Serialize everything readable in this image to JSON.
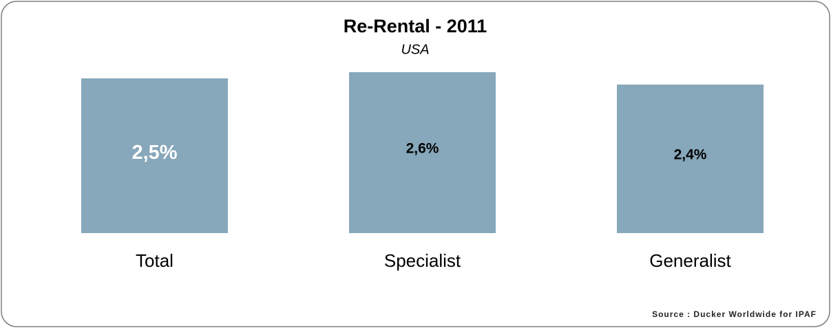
{
  "chart_data": {
    "type": "bar",
    "title": "Re-Rental - 2011",
    "subtitle": "USA",
    "categories": [
      "Total",
      "Specialist",
      "Generalist"
    ],
    "values": [
      2.5,
      2.6,
      2.4
    ],
    "value_labels": [
      "2,5%",
      "2,6%",
      "2,4%"
    ],
    "value_label_colors": [
      "#ffffff",
      "#000000",
      "#000000"
    ],
    "color": "#87a7ba",
    "source": "Source : Ducker Worldwide for IPAF"
  }
}
